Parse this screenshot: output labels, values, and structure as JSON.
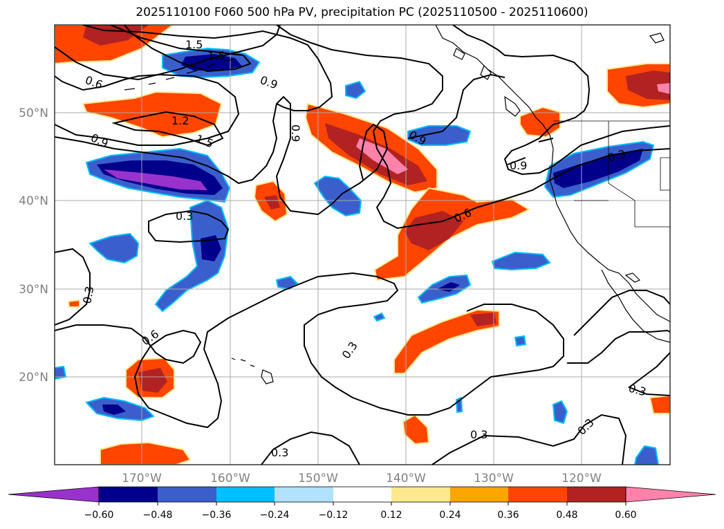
{
  "title": "2025110100 F060 500 hPa PV, precipitation PC (2025110500 - 2025110600)",
  "lat_labels": [
    "50°N",
    "40°N",
    "30°N",
    "20°N"
  ],
  "lon_labels": [
    "170°W",
    "160°W",
    "150°W",
    "140°W",
    "130°W",
    "120°W"
  ],
  "contour_labels": [
    "1.5",
    "1.5",
    "0.6",
    "0.9",
    "1.2",
    "1.5",
    "0.9",
    "0.9",
    "0.9",
    "0.9",
    "0.6",
    "0.3",
    "0.3",
    "0.6",
    "0.3",
    "0.3",
    "0.3",
    "0.3",
    "0.3",
    "0.3"
  ],
  "colorbar": {
    "ticks": [
      "−0.60",
      "−0.48",
      "−0.36",
      "−0.24",
      "−0.12",
      "0.12",
      "0.24",
      "0.36",
      "0.48",
      "0.60"
    ],
    "colors": [
      "#9932cc",
      "#00008b",
      "#3a5fcd",
      "#00bfff",
      "#b0e2ff",
      "#ffffff",
      "#fce98c",
      "#ffa500",
      "#ff4500",
      "#b22222",
      "#ff82ab"
    ]
  },
  "colors": {
    "neg_strong": "#00008b",
    "neg_mid": "#3a5fcd",
    "neg_light": "#00bfff",
    "neg_purple": "#9932cc",
    "pos_orange": "#ff4500",
    "pos_red": "#b22222",
    "pos_pink": "#ff82ab",
    "grid": "#a9a9a9"
  }
}
